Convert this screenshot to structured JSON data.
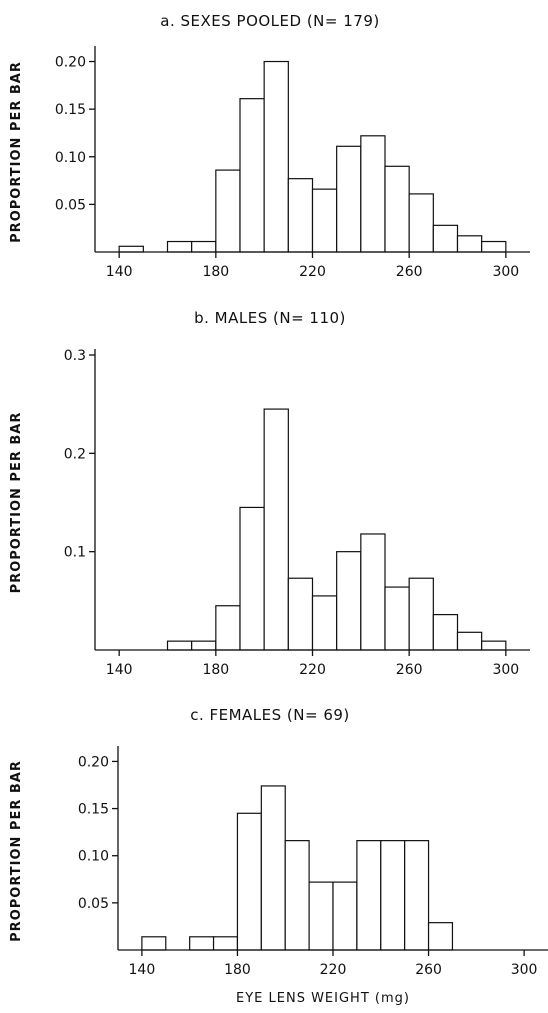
{
  "chart_data": [
    {
      "type": "bar",
      "title": "a. SEXES POOLED (N= 179)",
      "ylabel": "PROPORTION PER BAR",
      "xlabel": "",
      "bin_width": 10,
      "xlim": [
        130,
        310
      ],
      "ylim": [
        0,
        0.21
      ],
      "x_ticks": [
        140,
        180,
        220,
        260,
        300
      ],
      "y_ticks": [
        0.05,
        0.1,
        0.15,
        0.2
      ],
      "y_tick_labels": [
        "0.05",
        "0.10",
        "0.15",
        "0.20"
      ],
      "bin_starts": [
        140,
        160,
        170,
        180,
        190,
        200,
        210,
        220,
        230,
        240,
        250,
        260,
        270,
        280,
        290
      ],
      "values": [
        0.006,
        0.011,
        0.011,
        0.086,
        0.161,
        0.2,
        0.077,
        0.066,
        0.111,
        0.122,
        0.09,
        0.061,
        0.028,
        0.017,
        0.011
      ]
    },
    {
      "type": "bar",
      "title": "b. MALES (N= 110)",
      "ylabel": "PROPORTION PER BAR",
      "xlabel": "",
      "bin_width": 10,
      "xlim": [
        130,
        310
      ],
      "ylim": [
        0,
        0.3
      ],
      "x_ticks": [
        140,
        180,
        220,
        260,
        300
      ],
      "y_ticks": [
        0.1,
        0.2,
        0.3
      ],
      "y_tick_labels": [
        "0.1",
        "0.2",
        "0.3"
      ],
      "bin_starts": [
        160,
        170,
        180,
        190,
        200,
        210,
        220,
        230,
        240,
        250,
        260,
        270,
        280,
        290
      ],
      "values": [
        0.009,
        0.009,
        0.045,
        0.145,
        0.245,
        0.073,
        0.055,
        0.1,
        0.118,
        0.064,
        0.073,
        0.036,
        0.018,
        0.009
      ]
    },
    {
      "type": "bar",
      "title": "c. FEMALES (N= 69)",
      "ylabel": "PROPORTION PER BAR",
      "xlabel": "EYE LENS WEIGHT (mg)",
      "bin_width": 10,
      "xlim": [
        130,
        310
      ],
      "ylim": [
        0,
        0.21
      ],
      "x_ticks": [
        140,
        180,
        220,
        260,
        300
      ],
      "y_ticks": [
        0.05,
        0.1,
        0.15,
        0.2
      ],
      "y_tick_labels": [
        "0.05",
        "0.10",
        "0.15",
        "0.20"
      ],
      "bin_starts": [
        140,
        160,
        170,
        180,
        190,
        200,
        210,
        220,
        230,
        240,
        250,
        260
      ],
      "values": [
        0.014,
        0.014,
        0.014,
        0.145,
        0.174,
        0.116,
        0.072,
        0.072,
        0.116,
        0.116,
        0.116,
        0.029
      ]
    }
  ]
}
